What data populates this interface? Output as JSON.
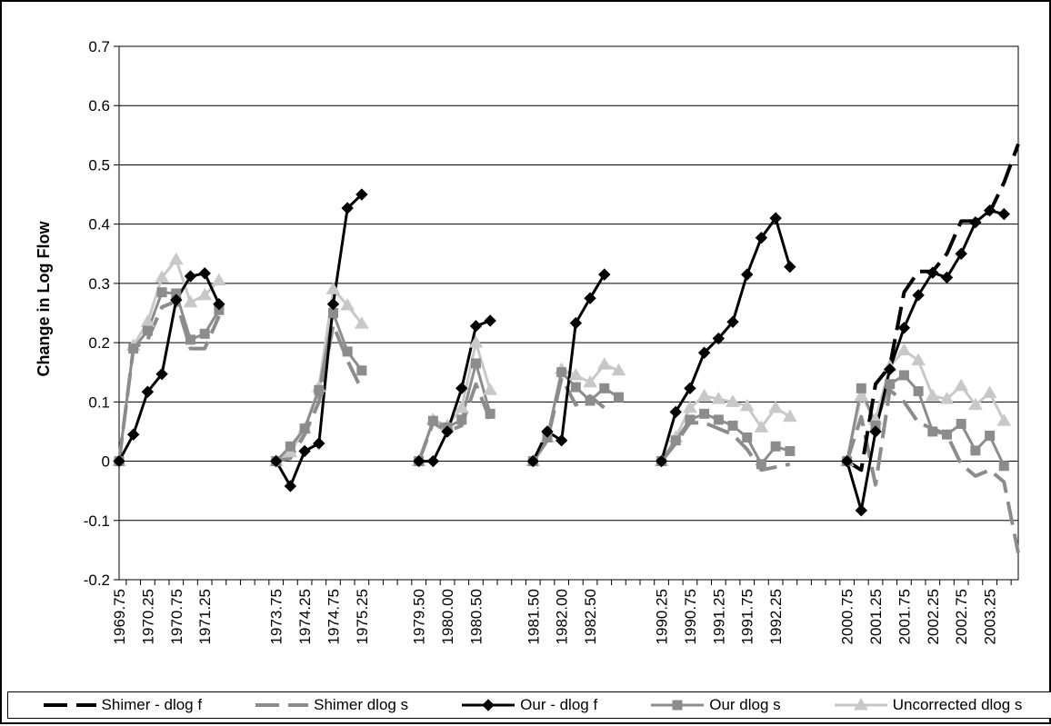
{
  "chart_data": {
    "type": "line",
    "ylabel": "Change in Log Flow",
    "xlabel": "",
    "ylim": [
      -0.2,
      0.7
    ],
    "yticks": [
      "-0.2",
      "-0.1",
      "0",
      "0.1",
      "0.2",
      "0.3",
      "0.4",
      "0.5",
      "0.6",
      "0.7"
    ],
    "grid": "horizontal",
    "legend_position": "bottom",
    "x_slots": [
      "1969.75",
      "1970.00",
      "1970.25",
      "1970.50",
      "1970.75",
      "1971.00",
      "1971.25",
      "1971.50",
      "gap",
      "gap",
      "gap",
      "1973.75",
      "1974.00",
      "1974.25",
      "1974.50",
      "1974.75",
      "1975.00",
      "1975.25",
      "gap",
      "gap",
      "gap",
      "1979.50",
      "1979.75",
      "1980.00",
      "1980.25",
      "1980.50",
      "gap",
      "gap",
      "gap",
      "1981.50",
      "1981.75",
      "1982.00",
      "1982.25",
      "1982.50",
      "1982.75",
      "gap",
      "gap",
      "gap",
      "1990.25",
      "1990.50",
      "1990.75",
      "1991.00",
      "1991.25",
      "1991.50",
      "1991.75",
      "1992.00",
      "1992.25",
      "1992.50",
      "gap",
      "gap",
      "gap",
      "2000.75",
      "2001.00",
      "2001.25",
      "2001.50",
      "2001.75",
      "2002.00",
      "2002.25",
      "2002.50",
      "2002.75",
      "2003.00",
      "2003.25",
      "2003.50"
    ],
    "x_tick_labels": [
      {
        "slot": 0,
        "label": "1969.75"
      },
      {
        "slot": 2,
        "label": "1970.25"
      },
      {
        "slot": 4,
        "label": "1970.75"
      },
      {
        "slot": 6,
        "label": "1971.25"
      },
      {
        "slot": 11,
        "label": "1973.75"
      },
      {
        "slot": 13,
        "label": "1974.25"
      },
      {
        "slot": 15,
        "label": "1974.75"
      },
      {
        "slot": 17,
        "label": "1975.25"
      },
      {
        "slot": 21,
        "label": "1979.50"
      },
      {
        "slot": 23,
        "label": "1980.00"
      },
      {
        "slot": 25,
        "label": "1980.50"
      },
      {
        "slot": 29,
        "label": "1981.50"
      },
      {
        "slot": 31,
        "label": "1982.00"
      },
      {
        "slot": 33,
        "label": "1982.50"
      },
      {
        "slot": 38,
        "label": "1990.25"
      },
      {
        "slot": 40,
        "label": "1990.75"
      },
      {
        "slot": 42,
        "label": "1991.25"
      },
      {
        "slot": 44,
        "label": "1991.75"
      },
      {
        "slot": 46,
        "label": "1992.25"
      },
      {
        "slot": 51,
        "label": "2000.75"
      },
      {
        "slot": 53,
        "label": "2001.25"
      },
      {
        "slot": 55,
        "label": "2001.75"
      },
      {
        "slot": 57,
        "label": "2002.25"
      },
      {
        "slot": 59,
        "label": "2002.75"
      },
      {
        "slot": 61,
        "label": "2003.25"
      }
    ],
    "series": [
      {
        "name": "Shimer - dlog f",
        "color": "#000000",
        "style": "dash",
        "marker": "none",
        "segments": [
          {
            "start": 51,
            "values": [
              0,
              -0.015,
              0.13,
              0.16,
              0.285,
              0.32,
              0.32,
              0.35,
              0.405,
              0.405,
              0.42,
              0.47,
              0.535
            ]
          }
        ]
      },
      {
        "name": "Shimer dlog s",
        "color": "#8c8c8c",
        "style": "dash",
        "marker": "none",
        "segments": [
          {
            "start": 0,
            "values": [
              0,
              0.19,
              0.205,
              0.26,
              0.27,
              0.19,
              0.19,
              0.245
            ]
          },
          {
            "start": 11,
            "values": [
              0,
              0.005,
              0.045,
              0.1,
              0.23,
              0.17,
              0.12
            ]
          },
          {
            "start": 21,
            "values": [
              0,
              0.065,
              0.05,
              0.06,
              0.13,
              0.07
            ]
          },
          {
            "start": 29,
            "values": [
              0,
              0.035,
              0.14,
              0.095,
              0.11,
              0.09
            ]
          },
          {
            "start": 38,
            "values": [
              0,
              0.03,
              0.065,
              0.065,
              0.055,
              0.045,
              0.02,
              -0.015,
              -0.01,
              -0.005
            ]
          },
          {
            "start": 51,
            "values": [
              0,
              0.075,
              -0.04,
              0.12,
              0.1,
              0.065,
              0.055,
              0.045,
              -0.005,
              -0.025,
              -0.015,
              -0.035,
              -0.155
            ]
          }
        ]
      },
      {
        "name": "Our - dlog f",
        "color": "#000000",
        "style": "solid",
        "marker": "diamond",
        "segments": [
          {
            "start": 0,
            "values": [
              0,
              0.045,
              0.117,
              0.147,
              0.272,
              0.312,
              0.317,
              0.265
            ]
          },
          {
            "start": 11,
            "values": [
              0,
              -0.042,
              0.017,
              0.03,
              0.265,
              0.427,
              0.45
            ]
          },
          {
            "start": 21,
            "values": [
              0,
              0,
              0.05,
              0.123,
              0.228,
              0.237
            ]
          },
          {
            "start": 29,
            "values": [
              0,
              0.05,
              0.035,
              0.233,
              0.275,
              0.315
            ]
          },
          {
            "start": 38,
            "values": [
              0,
              0.083,
              0.123,
              0.183,
              0.207,
              0.235,
              0.315,
              0.377,
              0.41,
              0.328
            ]
          },
          {
            "start": 51,
            "values": [
              0,
              -0.083,
              0.05,
              0.155,
              0.225,
              0.28,
              0.318,
              0.31,
              0.35,
              0.403,
              0.423,
              0.417
            ]
          }
        ]
      },
      {
        "name": "Our dlog s",
        "color": "#8c8c8c",
        "style": "solid",
        "marker": "square",
        "segments": [
          {
            "start": 0,
            "values": [
              0,
              0.19,
              0.22,
              0.285,
              0.283,
              0.205,
              0.215,
              0.255
            ]
          },
          {
            "start": 11,
            "values": [
              0,
              0.025,
              0.055,
              0.12,
              0.25,
              0.185,
              0.153
            ]
          },
          {
            "start": 21,
            "values": [
              0,
              0.068,
              0.057,
              0.07,
              0.165,
              0.08
            ]
          },
          {
            "start": 29,
            "values": [
              0,
              0.04,
              0.15,
              0.125,
              0.102,
              0.123,
              0.108
            ]
          },
          {
            "start": 38,
            "values": [
              0,
              0.035,
              0.07,
              0.08,
              0.07,
              0.06,
              0.04,
              -0.005,
              0.025,
              0.017
            ]
          },
          {
            "start": 51,
            "values": [
              0,
              0.123,
              0.06,
              0.13,
              0.145,
              0.118,
              0.05,
              0.045,
              0.063,
              0.018,
              0.043,
              -0.008
            ]
          }
        ]
      },
      {
        "name": "Uncorrected dlog s",
        "color": "#c8c8c8",
        "style": "solid",
        "marker": "triangle",
        "segments": [
          {
            "start": 0,
            "values": [
              0,
              0.195,
              0.235,
              0.31,
              0.34,
              0.268,
              0.28,
              0.305
            ]
          },
          {
            "start": 11,
            "values": [
              0,
              0.015,
              0.055,
              0.125,
              0.29,
              0.263,
              0.232
            ]
          },
          {
            "start": 21,
            "values": [
              0,
              0.07,
              0.06,
              0.09,
              0.2,
              0.12
            ]
          },
          {
            "start": 29,
            "values": [
              0,
              0.04,
              0.155,
              0.145,
              0.133,
              0.163,
              0.153
            ]
          },
          {
            "start": 38,
            "values": [
              0,
              0.04,
              0.09,
              0.11,
              0.105,
              0.1,
              0.093,
              0.057,
              0.09,
              0.075
            ]
          },
          {
            "start": 51,
            "values": [
              0,
              0.11,
              0.07,
              0.16,
              0.187,
              0.17,
              0.11,
              0.105,
              0.127,
              0.095,
              0.115,
              0.068
            ]
          }
        ]
      }
    ]
  }
}
